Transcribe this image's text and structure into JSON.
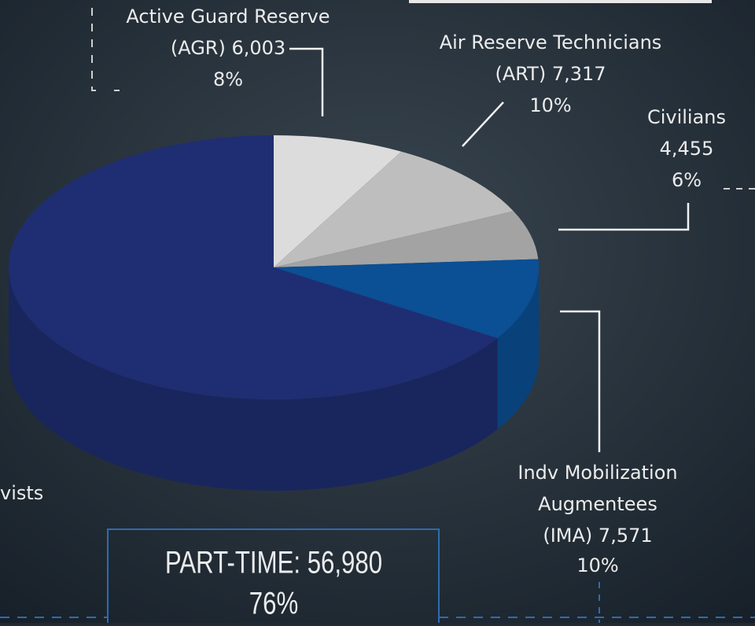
{
  "chart_data": {
    "type": "pie",
    "categories": [
      [
        "Active Guard Reserve",
        "(AGR) 6,003"
      ],
      [
        "Air Reserve Technicians",
        "(ART) 7,317"
      ],
      [
        "Civilians",
        "4,455"
      ],
      [
        "Indv Mobilization",
        "Augmentees",
        "(IMA) 7,571"
      ],
      [
        "vists"
      ]
    ],
    "values": [
      8,
      10,
      6,
      10,
      66
    ],
    "value_labels": [
      "8%",
      "10%",
      "6%",
      "10%",
      null
    ],
    "colors": [
      "#dcdcdc",
      "#bebebe",
      "#a3a3a3",
      "#0b4f95",
      "#1f2e72"
    ],
    "annotations": [
      "PART-TIME: 56,980",
      "76%"
    ]
  }
}
